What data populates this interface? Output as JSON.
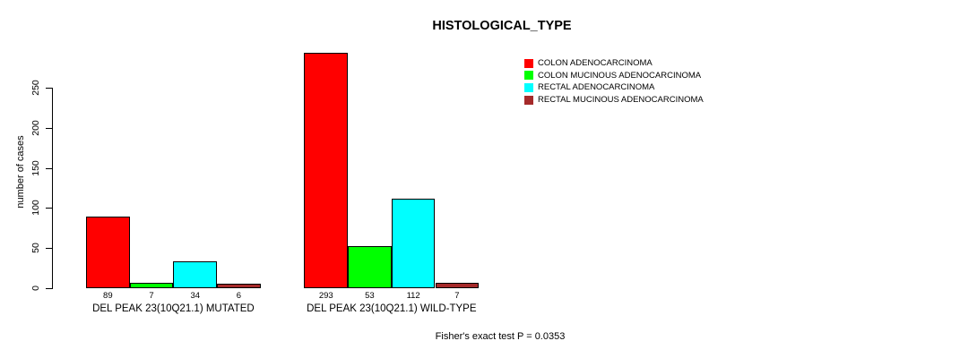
{
  "title": "HISTOLOGICAL_TYPE",
  "footer": "Fisher's exact test P = 0.0353",
  "chart_data": {
    "type": "bar",
    "title": "HISTOLOGICAL_TYPE",
    "xlabel": "",
    "ylabel": "number of cases",
    "ylim": [
      0,
      250
    ],
    "yticks": [
      "0",
      "50",
      "100",
      "150",
      "200",
      "250"
    ],
    "grid": false,
    "legend_position": "top-right",
    "bar_borders": "#000000",
    "categories": [
      "DEL PEAK 23(10Q21.1) MUTATED",
      "DEL PEAK 23(10Q21.1) WILD-TYPE"
    ],
    "series": [
      {
        "name": "COLON ADENOCARCINOMA",
        "color": "#FF0000",
        "values": [
          89,
          293
        ]
      },
      {
        "name": "COLON MUCINOUS ADENOCARCINOMA",
        "color": "#00FF00",
        "values": [
          7,
          53
        ]
      },
      {
        "name": "RECTAL ADENOCARCINOMA",
        "color": "#00FFFF",
        "values": [
          34,
          112
        ]
      },
      {
        "name": "RECTAL MUCINOUS ADENOCARCINOMA",
        "color": "#A52A2A",
        "values": [
          6,
          7
        ]
      }
    ],
    "bar_value_labels": [
      [
        "89",
        "7",
        "34",
        "6"
      ],
      [
        "293",
        "53",
        "112",
        "7"
      ]
    ],
    "annotation": "Fisher's exact test P = 0.0353"
  }
}
